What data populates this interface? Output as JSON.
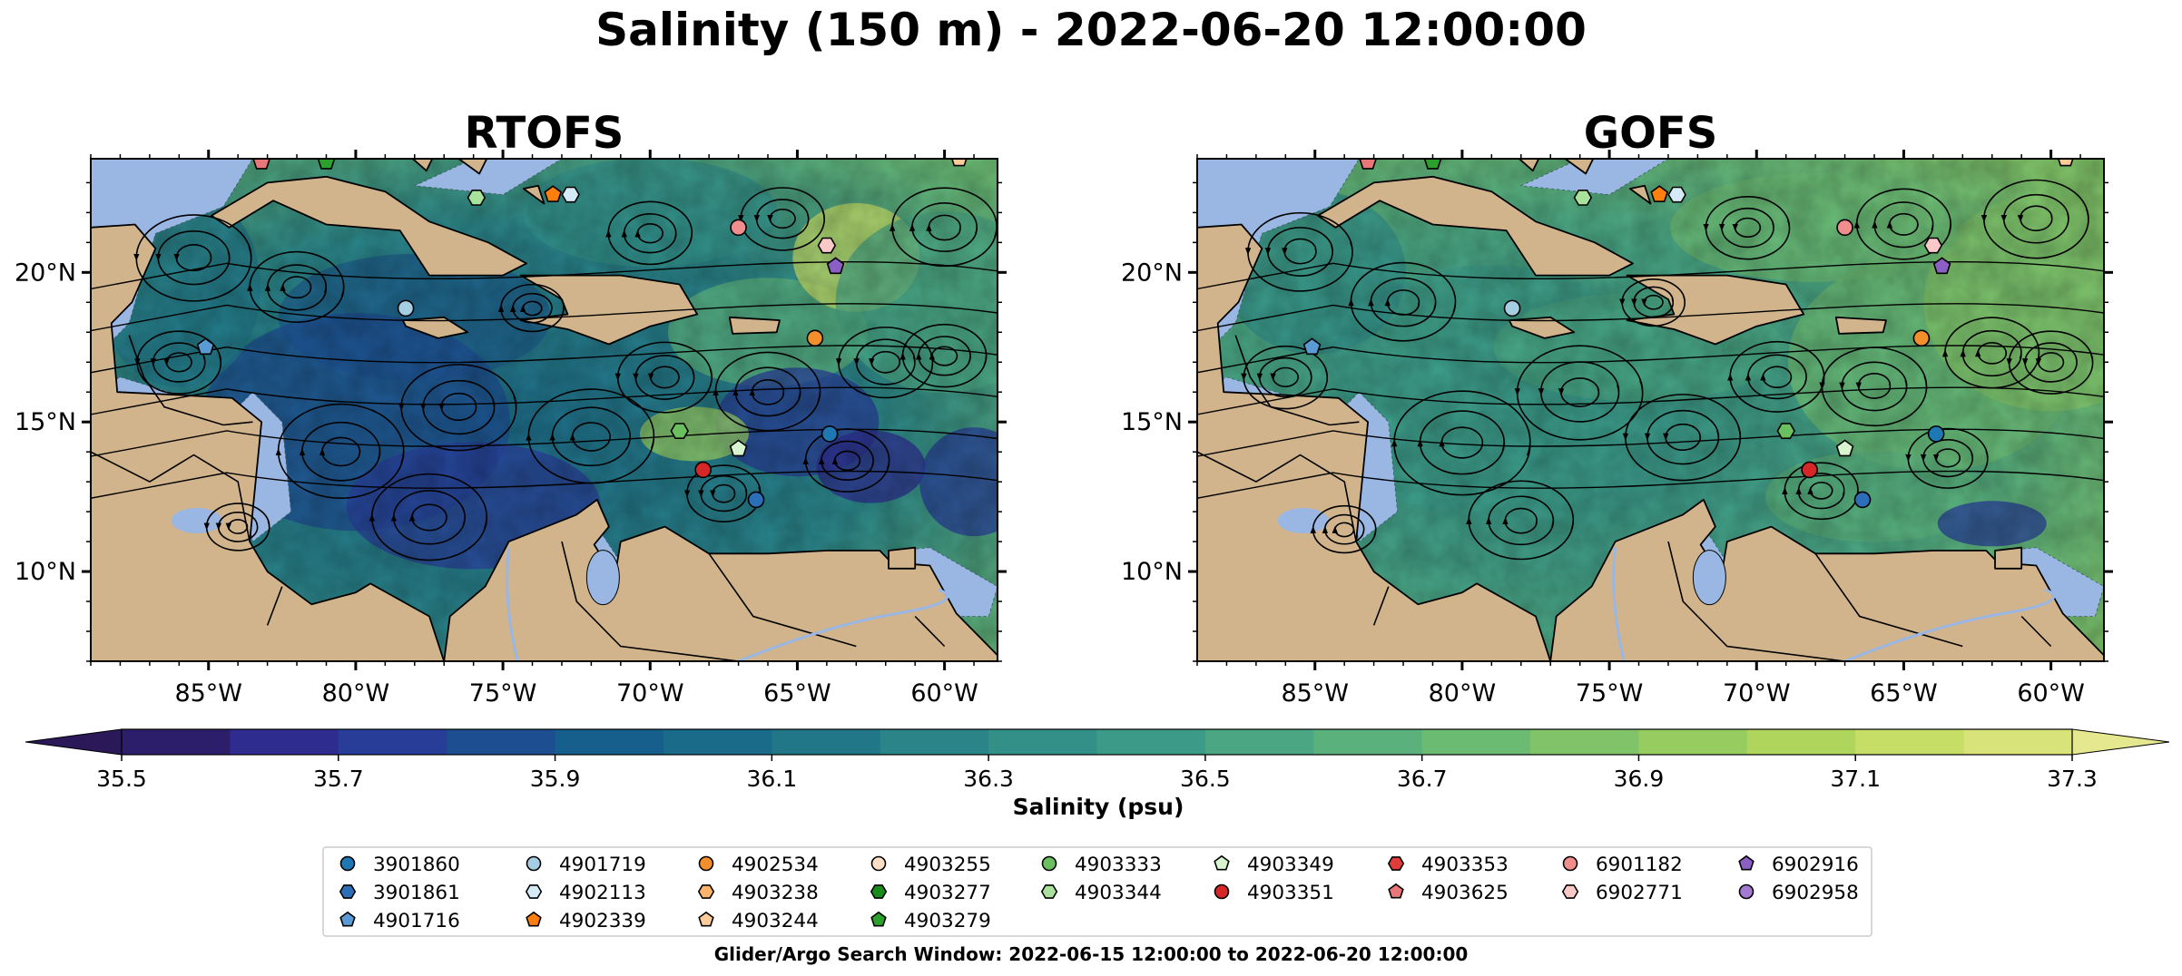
{
  "figure": {
    "title": "Salinity (150 m) - 2022-06-20 12:00:00",
    "footer": "Glider/Argo Search Window: 2022-06-15 12:00:00 to 2022-06-20 12:00:00"
  },
  "colors": {
    "land": "#d2b48c",
    "shelf": "#9ab7e3",
    "coast": "#000000"
  },
  "chart_data": [
    {
      "type": "heatmap",
      "title": "RTOFS",
      "x_ticks": [
        "85°W",
        "80°W",
        "75°W",
        "70°W",
        "65°W",
        "60°W"
      ],
      "x_tick_values": [
        -85,
        -80,
        -75,
        -70,
        -65,
        -60
      ],
      "y_ticks": [
        "10°N",
        "15°N",
        "20°N"
      ],
      "y_tick_values": [
        10,
        15,
        20
      ],
      "xlim": [
        -89,
        -58.2
      ],
      "ylim": [
        7,
        23.8
      ],
      "field": "salinity at 150 m (psu) with surface current streamlines"
    },
    {
      "type": "heatmap",
      "title": "GOFS",
      "x_ticks": [
        "85°W",
        "80°W",
        "75°W",
        "70°W",
        "65°W",
        "60°W"
      ],
      "x_tick_values": [
        -85,
        -80,
        -75,
        -70,
        -65,
        -60
      ],
      "y_ticks": [
        "10°N",
        "15°N",
        "20°N"
      ],
      "y_tick_values": [
        10,
        15,
        20
      ],
      "xlim": [
        -89,
        -58.2
      ],
      "ylim": [
        7,
        23.8
      ],
      "field": "salinity at 150 m (psu) with surface current streamlines"
    }
  ],
  "colorbar": {
    "label": "Salinity (psu)",
    "ticks": [
      "35.5",
      "35.7",
      "35.9",
      "36.1",
      "36.3",
      "36.5",
      "36.7",
      "36.9",
      "37.1",
      "37.3"
    ],
    "tick_values": [
      35.5,
      35.7,
      35.9,
      36.1,
      36.3,
      36.5,
      36.7,
      36.9,
      37.1,
      37.3
    ],
    "range": [
      35.5,
      37.3
    ],
    "extend": "both",
    "colors": [
      "#2c1e6a",
      "#2e2c8e",
      "#283d97",
      "#1d4e91",
      "#165e8b",
      "#196b89",
      "#217788",
      "#2a8488",
      "#339089",
      "#3c9b88",
      "#4aa683",
      "#5bb17c",
      "#6cbb73",
      "#80c368",
      "#97cc60",
      "#b0d55d",
      "#c6dd66",
      "#d8e37a"
    ],
    "under_color": "#2a1859",
    "over_color": "#e6e88f"
  },
  "legend": {
    "columns": [
      [
        {
          "id": "3901860",
          "marker": "circle",
          "color": "#1f77b4"
        },
        {
          "id": "3901861",
          "marker": "hexagon",
          "color": "#2c6fb8"
        },
        {
          "id": "4901716",
          "marker": "pentagon",
          "color": "#5a9bd5"
        }
      ],
      [
        {
          "id": "4901719",
          "marker": "circle",
          "color": "#a6cee3"
        },
        {
          "id": "4902113",
          "marker": "hexagon",
          "color": "#d4eaf7"
        },
        {
          "id": "4902339",
          "marker": "pentagon",
          "color": "#ff7f0e"
        }
      ],
      [
        {
          "id": "4902534",
          "marker": "circle",
          "color": "#f28e2b"
        },
        {
          "id": "4903238",
          "marker": "hexagon",
          "color": "#ffb36b"
        },
        {
          "id": "4903244",
          "marker": "pentagon",
          "color": "#ffcc99"
        }
      ],
      [
        {
          "id": "4903255",
          "marker": "circle",
          "color": "#fde0c5"
        },
        {
          "id": "4903277",
          "marker": "hexagon",
          "color": "#1a8a1a"
        },
        {
          "id": "4903279",
          "marker": "pentagon",
          "color": "#2ca02c"
        }
      ],
      [
        {
          "id": "4903333",
          "marker": "circle",
          "color": "#6abf5e"
        },
        {
          "id": "4903344",
          "marker": "hexagon",
          "color": "#a8e29c"
        }
      ],
      [
        {
          "id": "4903349",
          "marker": "pentagon",
          "color": "#d8f5d0"
        },
        {
          "id": "4903351",
          "marker": "circle",
          "color": "#d62728"
        }
      ],
      [
        {
          "id": "4903353",
          "marker": "hexagon",
          "color": "#e03c3c"
        },
        {
          "id": "4903625",
          "marker": "pentagon",
          "color": "#e8777a"
        }
      ],
      [
        {
          "id": "6901182",
          "marker": "circle",
          "color": "#f08e8e"
        },
        {
          "id": "6902771",
          "marker": "hexagon",
          "color": "#fbc8c8"
        }
      ],
      [
        {
          "id": "6902916",
          "marker": "pentagon",
          "color": "#8c5fc4"
        },
        {
          "id": "6902958",
          "marker": "circle",
          "color": "#a27bd0"
        }
      ]
    ]
  },
  "floats": [
    {
      "lon": -83.2,
      "lat": 23.7,
      "marker": "pentagon",
      "color": "#e8777a"
    },
    {
      "lon": -81.0,
      "lat": 23.7,
      "marker": "pentagon",
      "color": "#2ca02c"
    },
    {
      "lon": -75.9,
      "lat": 22.5,
      "marker": "hexagon",
      "color": "#a8e29c"
    },
    {
      "lon": -73.3,
      "lat": 22.6,
      "marker": "pentagon",
      "color": "#ff7f0e"
    },
    {
      "lon": -72.7,
      "lat": 22.6,
      "marker": "hexagon",
      "color": "#d4eaf7"
    },
    {
      "lon": -67.0,
      "lat": 21.5,
      "marker": "circle",
      "color": "#f08e8e"
    },
    {
      "lon": -64.0,
      "lat": 20.9,
      "marker": "hexagon",
      "color": "#fbc8c8"
    },
    {
      "lon": -59.5,
      "lat": 23.8,
      "marker": "pentagon",
      "color": "#ffcc99"
    },
    {
      "lon": -63.7,
      "lat": 20.2,
      "marker": "pentagon",
      "color": "#8c5fc4"
    },
    {
      "lon": -78.3,
      "lat": 18.8,
      "marker": "circle",
      "color": "#a6cee3"
    },
    {
      "lon": -64.4,
      "lat": 17.8,
      "marker": "circle",
      "color": "#f28e2b"
    },
    {
      "lon": -85.1,
      "lat": 17.5,
      "marker": "pentagon",
      "color": "#5a9bd5"
    },
    {
      "lon": -69.0,
      "lat": 14.7,
      "marker": "hexagon",
      "color": "#6abf5e"
    },
    {
      "lon": -67.0,
      "lat": 14.1,
      "marker": "pentagon",
      "color": "#d8f5d0"
    },
    {
      "lon": -63.9,
      "lat": 14.6,
      "marker": "circle",
      "color": "#1f77b4"
    },
    {
      "lon": -68.2,
      "lat": 13.4,
      "marker": "circle",
      "color": "#d62728"
    },
    {
      "lon": -66.4,
      "lat": 12.4,
      "marker": "circle",
      "color": "#2c6fb8"
    }
  ]
}
